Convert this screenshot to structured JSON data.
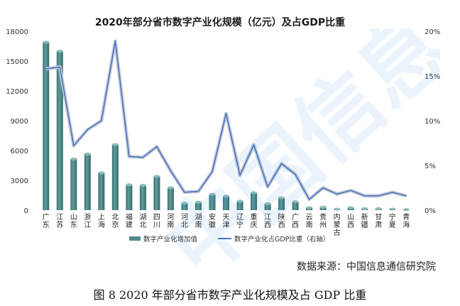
{
  "chart_data": {
    "type": "bar",
    "title": "2020年部分省市数字产业化规模（亿元）及占GDP比重",
    "categories": [
      "广东",
      "江苏",
      "山东",
      "浙江",
      "上海",
      "北京",
      "福建",
      "湖北",
      "四川",
      "河南",
      "河北",
      "湖南",
      "安徽",
      "天津",
      "辽宁",
      "重庆",
      "江西",
      "陕西",
      "广西",
      "云南",
      "贵州",
      "内蒙古",
      "山西",
      "新疆",
      "甘肃",
      "宁夏",
      "青海"
    ],
    "series": [
      {
        "name": "数字产业化增加值",
        "axis": "left",
        "type": "bar",
        "color": "#4f8a8b",
        "values": [
          16900,
          16000,
          5150,
          5650,
          3750,
          6600,
          2550,
          2500,
          3400,
          2250,
          700,
          800,
          1600,
          1400,
          900,
          1750,
          650,
          1250,
          850,
          250,
          300,
          100,
          250,
          150,
          150,
          100,
          50
        ]
      },
      {
        "name": "数字产业化占GDP比重（右轴）",
        "axis": "right",
        "type": "line",
        "color": "#4a72c4",
        "values": [
          15.8,
          16.0,
          7.2,
          9.0,
          10.0,
          18.9,
          6.0,
          5.9,
          7.1,
          4.4,
          2.0,
          2.1,
          4.3,
          10.8,
          3.9,
          7.3,
          2.6,
          5.2,
          4.0,
          1.2,
          2.5,
          1.8,
          2.2,
          1.6,
          1.6,
          2.0,
          1.6
        ]
      }
    ],
    "y_left": {
      "min": 0,
      "max": 18000,
      "ticks": [
        "0",
        "3000",
        "6000",
        "9000",
        "12000",
        "15000",
        "18000"
      ]
    },
    "y_right": {
      "min": 0,
      "max": 20,
      "ticks": [
        "0%",
        "5%",
        "10%",
        "15%",
        "20%"
      ]
    },
    "grid": false,
    "legend_position": "bottom-center"
  },
  "source_note": "数据来源：中国信息通信研究院",
  "figure_caption": "图 8 2020 年部分省市数字产业化规模及占 GDP 比重",
  "watermark_text": "中国信息"
}
